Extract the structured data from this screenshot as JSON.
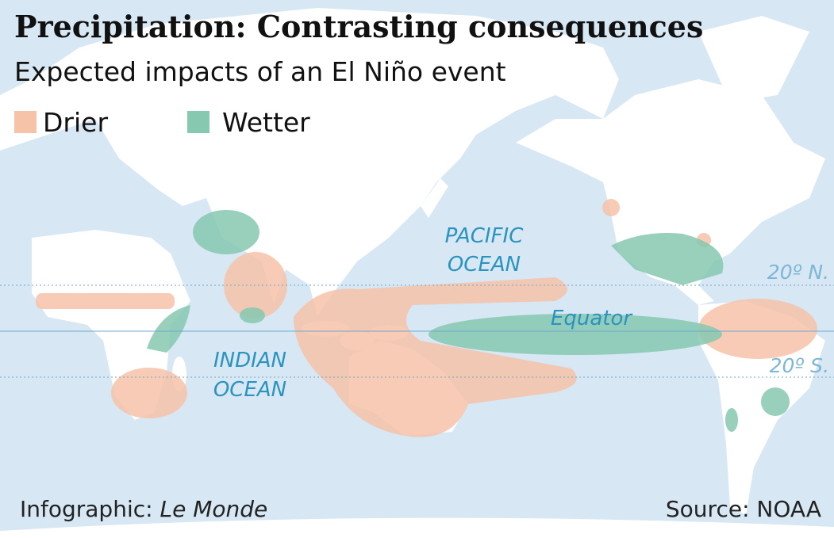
{
  "header": {
    "title": "Precipitation: Contrasting consequences",
    "subtitle": "Expected impacts of an El Niño event"
  },
  "legend": [
    {
      "label": "Drier",
      "color": "#f6c2a8"
    },
    {
      "label": "Wetter",
      "color": "#86c8b0"
    }
  ],
  "oceans": [
    {
      "lines": [
        "PACIFIC",
        "OCEAN"
      ]
    },
    {
      "lines": [
        "INDIAN",
        "OCEAN"
      ]
    }
  ],
  "lines": {
    "north": "20º N.",
    "equator": "Equator",
    "south": "20º S."
  },
  "footer": {
    "credit_prefix": "Infographic:",
    "credit_name": "Le Monde",
    "source": "Source: NOAA"
  }
}
